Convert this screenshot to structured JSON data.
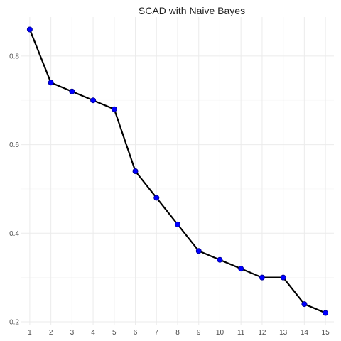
{
  "chart_data": {
    "type": "line",
    "title": "SCAD with Naive Bayes",
    "xlabel": "",
    "ylabel": "",
    "x": [
      1,
      2,
      3,
      4,
      5,
      6,
      7,
      8,
      9,
      10,
      11,
      12,
      13,
      14,
      15
    ],
    "series": [
      {
        "values": [
          0.86,
          0.74,
          0.72,
          0.7,
          0.68,
          0.54,
          0.48,
          0.42,
          0.36,
          0.34,
          0.32,
          0.3,
          0.3,
          0.24,
          0.22
        ]
      }
    ],
    "xlim": [
      0.6,
      15.4
    ],
    "ylim": [
      0.192,
      0.888
    ],
    "x_ticks": [
      "1",
      "2",
      "3",
      "4",
      "5",
      "6",
      "7",
      "8",
      "9",
      "10",
      "11",
      "12",
      "13",
      "14",
      "15"
    ],
    "y_ticks": [
      0.2,
      0.4,
      0.6,
      0.8
    ],
    "y_tick_labels": [
      "0.2",
      "0.4",
      "0.6",
      "0.8"
    ],
    "grid": true,
    "legend": "none",
    "colors": {
      "line": "#000000",
      "point": "#0000ff",
      "point_outline": "#00008b",
      "grid": "#ebebeb"
    }
  }
}
